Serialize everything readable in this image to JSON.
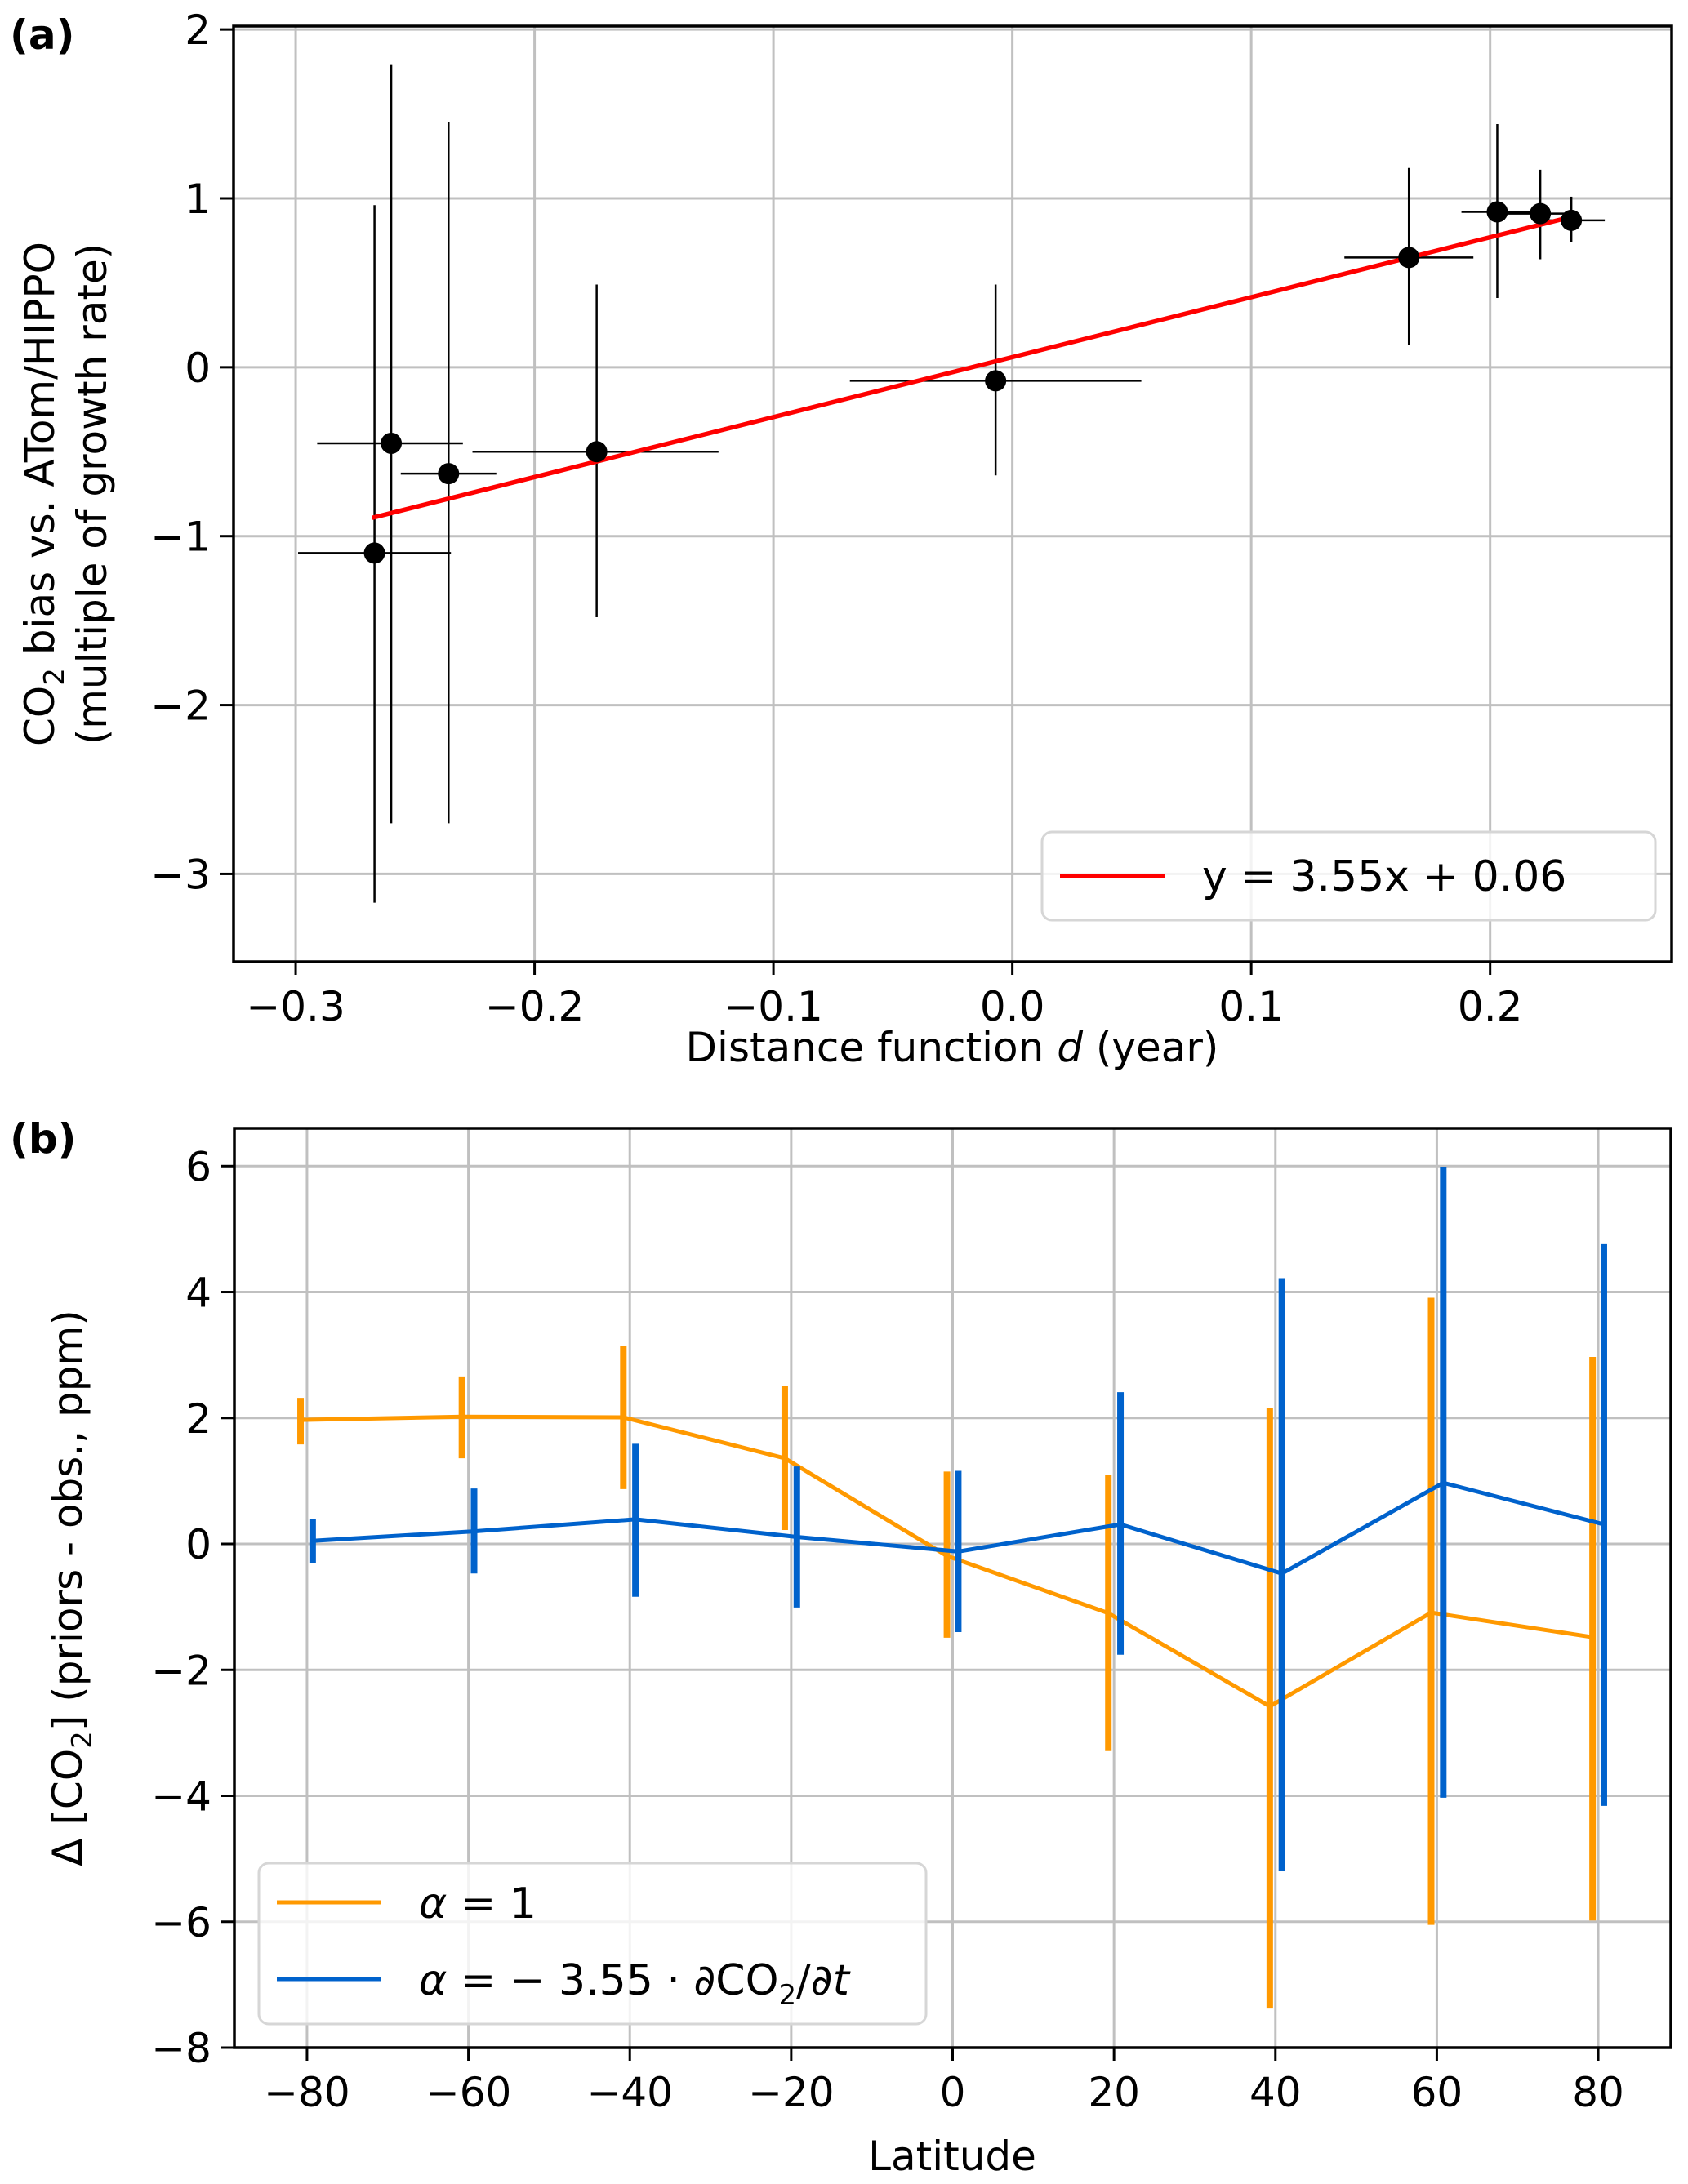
{
  "figure": {
    "panels": [
      "(a)",
      "(b)"
    ]
  },
  "chart_data": [
    {
      "type": "scatter",
      "panel_label": "(a)",
      "title": "",
      "xlabel_parts": [
        "Distance function ",
        "d",
        " (year)"
      ],
      "xlabel": "Distance function d (year)",
      "ylabel_line1_parts": [
        "CO",
        "2",
        " bias vs. ATom/HIPPO"
      ],
      "ylabel_line2": "(multiple of growth rate)",
      "ylabel": "CO2 bias vs. ATom/HIPPO (multiple of growth rate)",
      "xlim": [
        -0.326,
        0.276
      ],
      "ylim": [
        -3.52,
        2.02
      ],
      "xticks": [
        -0.3,
        -0.2,
        -0.1,
        0.0,
        0.1,
        0.2
      ],
      "xtick_labels": [
        "−0.3",
        "−0.2",
        "−0.1",
        "0.0",
        "0.1",
        "0.2"
      ],
      "yticks": [
        2,
        1,
        0,
        -1,
        -2,
        -3
      ],
      "ytick_labels": [
        "2",
        "1",
        "0",
        "−1",
        "−2",
        "−3"
      ],
      "grid": true,
      "points": [
        {
          "x": -0.267,
          "y": -1.1,
          "xerr": [
            -0.299,
            -0.235
          ],
          "yerr": [
            -3.17,
            0.96
          ]
        },
        {
          "x": -0.26,
          "y": -0.45,
          "xerr": [
            -0.291,
            -0.23
          ],
          "yerr": [
            -2.7,
            1.79
          ]
        },
        {
          "x": -0.236,
          "y": -0.63,
          "xerr": [
            -0.256,
            -0.216
          ],
          "yerr": [
            -2.7,
            1.45
          ]
        },
        {
          "x": -0.174,
          "y": -0.5,
          "xerr": [
            -0.226,
            -0.123
          ],
          "yerr": [
            -1.48,
            0.49
          ]
        },
        {
          "x": -0.007,
          "y": -0.08,
          "xerr": [
            -0.068,
            0.054
          ],
          "yerr": [
            -0.64,
            0.49
          ]
        },
        {
          "x": 0.166,
          "y": 0.65,
          "xerr": [
            0.139,
            0.193
          ],
          "yerr": [
            0.13,
            1.18
          ]
        },
        {
          "x": 0.203,
          "y": 0.92,
          "xerr": [
            0.188,
            0.222
          ],
          "yerr": [
            0.41,
            1.44
          ]
        },
        {
          "x": 0.221,
          "y": 0.91,
          "xerr": [
            0.206,
            0.236
          ],
          "yerr": [
            0.64,
            1.17
          ]
        },
        {
          "x": 0.234,
          "y": 0.87,
          "xerr": [
            0.221,
            0.248
          ],
          "yerr": [
            0.74,
            1.01
          ]
        }
      ],
      "point_color": "#000000",
      "fit_line": {
        "slope": 3.55,
        "intercept": 0.06,
        "x_range": [
          -0.268,
          0.234
        ],
        "color": "#ff0000"
      },
      "legend": {
        "entries": [
          {
            "label": "y = 3.55x + 0.06",
            "color": "#ff0000"
          }
        ],
        "position": "lower-right"
      }
    },
    {
      "type": "line",
      "panel_label": "(b)",
      "title": "",
      "xlabel": "Latitude",
      "ylabel_parts": [
        "Δ [CO",
        "2",
        "] (priors - obs., ppm)"
      ],
      "ylabel": "Δ [CO2] (priors - obs., ppm)",
      "xlim": [
        -89,
        89
      ],
      "ylim": [
        -8,
        6.6
      ],
      "xticks": [
        -80,
        -60,
        -40,
        -20,
        0,
        20,
        40,
        60,
        80
      ],
      "xtick_labels": [
        "−80",
        "−60",
        "−40",
        "−20",
        "0",
        "20",
        "40",
        "60",
        "80"
      ],
      "yticks": [
        6,
        4,
        2,
        0,
        -2,
        -4,
        -6,
        -8
      ],
      "ytick_labels": [
        "6",
        "4",
        "2",
        "0",
        "−2",
        "−4",
        "−6",
        "−8"
      ],
      "grid": true,
      "series": [
        {
          "name": "α = 1",
          "legend_parts": [
            "α",
            " = 1",
            "",
            ""
          ],
          "color": "#ff9900",
          "x": [
            -80.8,
            -60.8,
            -40.8,
            -20.8,
            -0.7,
            19.3,
            39.3,
            59.3,
            79.3
          ],
          "values": [
            1.97,
            2.02,
            2.01,
            1.36,
            -0.19,
            -1.1,
            -2.58,
            -1.09,
            -1.48
          ],
          "err_low": [
            1.58,
            1.36,
            0.87,
            0.22,
            -1.49,
            -3.29,
            -7.38,
            -6.05,
            -5.98
          ],
          "err_high": [
            2.32,
            2.66,
            3.15,
            2.51,
            1.15,
            1.1,
            2.16,
            3.91,
            2.97
          ]
        },
        {
          "name": "α = −3.55 · ∂CO2/∂t",
          "legend_parts": [
            "α",
            " = − 3.55 · ∂CO",
            "2",
            "/∂"
          ],
          "legend_tail": "t",
          "color": "#0062cc",
          "x": [
            -79.3,
            -59.3,
            -39.3,
            -19.3,
            0.7,
            20.8,
            40.8,
            60.8,
            80.7
          ],
          "values": [
            0.05,
            0.2,
            0.39,
            0.11,
            -0.12,
            0.31,
            -0.47,
            0.97,
            0.31
          ],
          "err_low": [
            -0.3,
            -0.47,
            -0.84,
            -1.01,
            -1.4,
            -1.76,
            -5.2,
            -4.03,
            -4.16
          ],
          "err_high": [
            0.4,
            0.88,
            1.59,
            1.23,
            1.16,
            2.41,
            4.22,
            5.99,
            4.76
          ]
        }
      ],
      "legend": {
        "position": "lower-left"
      }
    }
  ]
}
